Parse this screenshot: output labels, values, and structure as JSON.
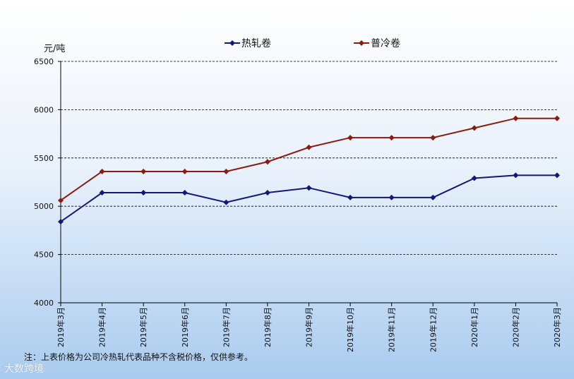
{
  "chart_data": {
    "type": "line",
    "yunit": "元/吨",
    "ylim": [
      4000,
      6500
    ],
    "yticks": [
      4000,
      4500,
      5000,
      5500,
      6000,
      6500
    ],
    "grid": true,
    "legend_position": "top",
    "categories": [
      "2019年3月",
      "2019年4月",
      "2019年5月",
      "2019年6月",
      "2019年7月",
      "2019年8月",
      "2019年9月",
      "2019年10月",
      "2019年11月",
      "2019年12月",
      "2020年1月",
      "2020年2月",
      "2020年3月"
    ],
    "series": [
      {
        "name": "热轧卷",
        "color": "#12177a",
        "values": [
          4840,
          5140,
          5140,
          5140,
          5040,
          5140,
          5190,
          5090,
          5090,
          5090,
          5290,
          5320,
          5320
        ]
      },
      {
        "name": "普冷卷",
        "color": "#8b1a10",
        "values": [
          5060,
          5360,
          5360,
          5360,
          5360,
          5460,
          5610,
          5710,
          5710,
          5710,
          5810,
          5910,
          5910
        ]
      }
    ]
  },
  "note": "注：上表价格为公司冷热轧代表品种不含税价格，仅供参考。",
  "watermark": "大数跨境"
}
